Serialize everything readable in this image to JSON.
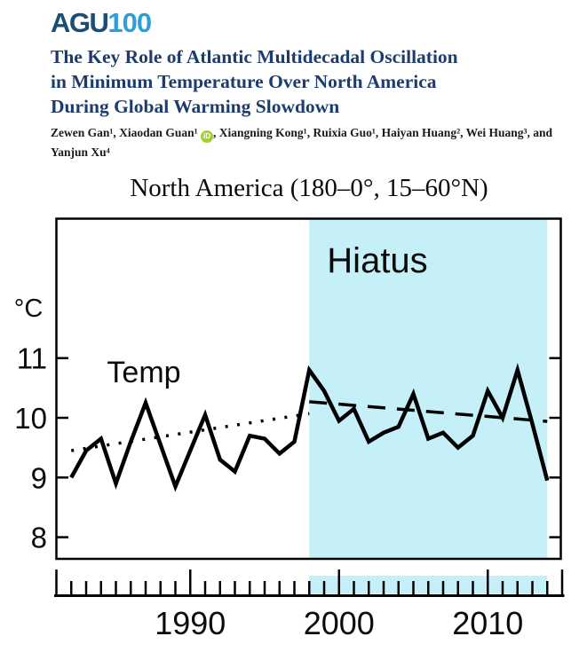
{
  "header": {
    "logo": {
      "agu": "AGU",
      "hundred": "100"
    },
    "colors": {
      "agu": "#1b4e74",
      "hundred": "#2e9ed9",
      "title": "#1c3c6e",
      "orcid": "#a6ce39"
    },
    "title_lines": [
      "The Key Role of Atlantic Multidecadal Oscillation",
      "in Minimum Temperature Over North America",
      "During Global Warming Slowdown"
    ],
    "authors": {
      "line1_pre_icon": "Zewen Gan¹, Xiaodan Guan¹ ",
      "orcid_icon_text": "iD",
      "line1_post_icon": ", Xiangning Kong¹, Ruixia Guo¹, Haiyan Huang², Wei Huang³, and",
      "line2": "Yanjun Xu⁴"
    }
  },
  "chart_data": {
    "type": "line",
    "title": "North America (180–0°, 15–60°N)",
    "ylabel": "°C",
    "series_label": "Temp",
    "annotations": {
      "hiatus_label": "Hiatus"
    },
    "x": [
      1982,
      1983,
      1984,
      1985,
      1986,
      1987,
      1988,
      1989,
      1990,
      1991,
      1992,
      1993,
      1994,
      1995,
      1996,
      1997,
      1998,
      1999,
      2000,
      2001,
      2002,
      2003,
      2004,
      2005,
      2006,
      2007,
      2008,
      2009,
      2010,
      2011,
      2012,
      2013,
      2014
    ],
    "values": [
      9.0,
      9.45,
      9.65,
      8.9,
      9.6,
      10.25,
      9.55,
      8.85,
      9.45,
      10.05,
      9.3,
      9.1,
      9.7,
      9.65,
      9.4,
      9.6,
      10.8,
      10.45,
      9.95,
      10.15,
      9.6,
      9.75,
      9.85,
      10.4,
      9.65,
      9.75,
      9.5,
      9.7,
      10.45,
      10.0,
      10.8,
      9.9,
      8.95
    ],
    "yticks": [
      11,
      10,
      9,
      8
    ],
    "xticks": [
      1990,
      2000,
      2010
    ],
    "xlim": [
      1981,
      2015
    ],
    "ylim": [
      7.6,
      13.3
    ],
    "hiatus_span": [
      1998,
      2014
    ],
    "trend_pre_hiatus": {
      "x": [
        1982,
        1998
      ],
      "y": [
        9.45,
        10.07
      ],
      "style": "dotted"
    },
    "trend_hiatus": {
      "x": [
        1998,
        2014
      ],
      "y": [
        10.27,
        9.94
      ],
      "style": "dashed"
    },
    "legend_position": "none",
    "grid": false,
    "colors": {
      "hiatus_fill": "#c5f0f8",
      "line": "#000000"
    }
  }
}
